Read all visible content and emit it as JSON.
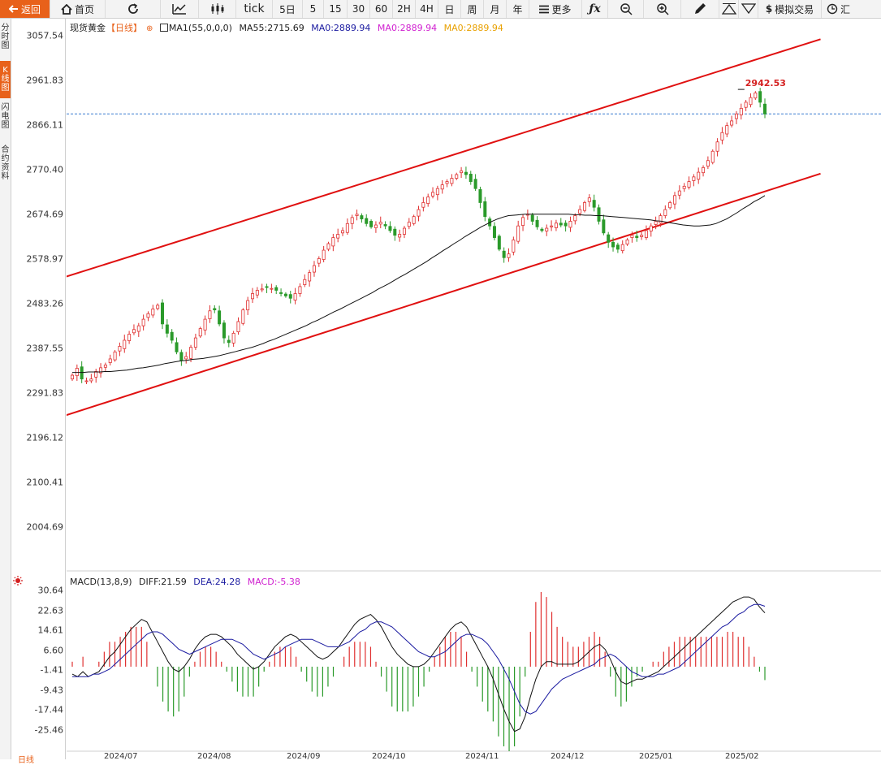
{
  "toolbar": {
    "back": "返回",
    "home": "首页",
    "tick": "tick",
    "periods": [
      "5日",
      "5",
      "15",
      "30",
      "60",
      "2H",
      "4H",
      "日",
      "周",
      "月",
      "年"
    ],
    "more": "更多",
    "sim_trade": "模拟交易",
    "last": "汇"
  },
  "sidebar": {
    "tabs": [
      "分时图",
      "K线图",
      "闪电图",
      "合约资料"
    ]
  },
  "legend": {
    "name": "现货黄金",
    "period": "【日线】",
    "ma1": "MA1(55,0,0,0)",
    "ma55": "MA55:2715.69",
    "ma0a": "MA0:2889.94",
    "ma0b": "MA0:2889.94",
    "ma0c": "MA0:2889.94"
  },
  "macd_legend": {
    "name": "MACD(13,8,9)",
    "diff": "DIFF:21.59",
    "dea": "DEA:24.28",
    "macd": "MACD:-5.38"
  },
  "peak_label": "2942.53",
  "footer_tab": "日线",
  "colors": {
    "up": "#e03030",
    "down": "#2a9a2a",
    "channel": "#e01010",
    "dea": "#1a1aa0",
    "accent": "#e8611a"
  },
  "chart_data": [
    {
      "type": "candlestick",
      "ylim": [
        1960,
        3080
      ],
      "y_ticks": [
        "3057.54",
        "2961.83",
        "2866.11",
        "2770.40",
        "2674.69",
        "2578.97",
        "2483.26",
        "2387.55",
        "2291.83",
        "2196.12",
        "2100.41",
        "2004.69"
      ],
      "x_labels": [
        "2024/07",
        "2024/08",
        "2024/09",
        "2024/10",
        "2024/11",
        "2024/12",
        "2025/01",
        "2025/02"
      ],
      "current_price_line": 2889.94,
      "peak": 2942.53,
      "ma55_end": 2715.69,
      "close": [
        2330,
        2345,
        2322,
        2318,
        2322,
        2338,
        2346,
        2352,
        2365,
        2380,
        2392,
        2405,
        2418,
        2428,
        2436,
        2450,
        2462,
        2472,
        2480,
        2440,
        2420,
        2405,
        2380,
        2362,
        2370,
        2390,
        2410,
        2430,
        2450,
        2468,
        2470,
        2440,
        2410,
        2400,
        2420,
        2445,
        2470,
        2490,
        2505,
        2512,
        2515,
        2518,
        2516,
        2512,
        2505,
        2500,
        2495,
        2505,
        2520,
        2535,
        2550,
        2565,
        2580,
        2598,
        2612,
        2625,
        2632,
        2640,
        2655,
        2668,
        2675,
        2665,
        2655,
        2648,
        2652,
        2658,
        2650,
        2640,
        2630,
        2632,
        2645,
        2658,
        2670,
        2685,
        2700,
        2712,
        2722,
        2730,
        2738,
        2745,
        2752,
        2760,
        2768,
        2760,
        2745,
        2730,
        2700,
        2670,
        2650,
        2625,
        2600,
        2582,
        2590,
        2620,
        2650,
        2668,
        2675,
        2660,
        2648,
        2640,
        2645,
        2650,
        2656,
        2652,
        2650,
        2660,
        2672,
        2685,
        2700,
        2710,
        2690,
        2660,
        2635,
        2615,
        2605,
        2600,
        2610,
        2620,
        2630,
        2625,
        2630,
        2640,
        2650,
        2660,
        2672,
        2685,
        2700,
        2715,
        2725,
        2735,
        2745,
        2755,
        2765,
        2775,
        2790,
        2810,
        2830,
        2850,
        2865,
        2875,
        2890,
        2902,
        2915,
        2925,
        2935,
        2915,
        2890
      ],
      "ma55": [
        2336,
        2336,
        2336,
        2337,
        2337,
        2337,
        2338,
        2338,
        2339,
        2340,
        2341,
        2343,
        2345,
        2346,
        2348,
        2350,
        2352,
        2355,
        2357,
        2359,
        2361,
        2362,
        2364,
        2365,
        2366,
        2368,
        2370,
        2372,
        2375,
        2378,
        2381,
        2384,
        2387,
        2390,
        2394,
        2398,
        2403,
        2407,
        2412,
        2417,
        2422,
        2427,
        2432,
        2437,
        2443,
        2448,
        2454,
        2460,
        2466,
        2471,
        2477,
        2483,
        2489,
        2495,
        2501,
        2507,
        2514,
        2520,
        2526,
        2533,
        2540,
        2546,
        2553,
        2560,
        2567,
        2574,
        2582,
        2589,
        2597,
        2604,
        2612,
        2619,
        2627,
        2634,
        2641,
        2648,
        2654,
        2660,
        2665,
        2669,
        2672,
        2673,
        2674,
        2675,
        2675,
        2675,
        2675,
        2675,
        2675,
        2675,
        2675,
        2675,
        2674,
        2674,
        2673,
        2673,
        2672,
        2672,
        2671,
        2670,
        2669,
        2668,
        2667,
        2666,
        2665,
        2664,
        2663,
        2661,
        2660,
        2658,
        2656,
        2654,
        2652,
        2651,
        2650,
        2650,
        2651,
        2652,
        2655,
        2660,
        2665,
        2672,
        2679,
        2687,
        2694,
        2702,
        2708,
        2715
      ],
      "channel_upper": [
        {
          "date": "2024-06-26",
          "value": 2535
        },
        {
          "date": "2025-02-28",
          "value": 3050
        }
      ],
      "channel_lower": [
        {
          "date": "2024-06-26",
          "value": 2238
        },
        {
          "date": "2025-02-28",
          "value": 2762
        }
      ]
    },
    {
      "type": "bar",
      "title": "MACD(13,8,9)",
      "ylim": [
        -33,
        33
      ],
      "y_ticks": [
        "30.64",
        "22.63",
        "14.61",
        "6.60",
        "-1.41",
        "-9.43",
        "-17.44",
        "-25.46"
      ],
      "diff": [
        -3,
        -4,
        -2,
        -4,
        -3,
        -2,
        1,
        4,
        6,
        9,
        12,
        15,
        17,
        19,
        18,
        14,
        10,
        6,
        2,
        -1,
        -2,
        0,
        3,
        7,
        10,
        12,
        13,
        13,
        12,
        10,
        8,
        5,
        3,
        1,
        -1,
        0,
        2,
        5,
        8,
        10,
        12,
        13,
        12,
        10,
        8,
        6,
        4,
        3,
        4,
        6,
        8,
        11,
        14,
        17,
        19,
        20,
        21,
        19,
        16,
        12,
        8,
        5,
        3,
        1,
        0,
        0,
        1,
        3,
        6,
        9,
        12,
        15,
        17,
        18,
        16,
        12,
        8,
        4,
        0,
        -5,
        -11,
        -17,
        -22,
        -26,
        -25,
        -20,
        -12,
        -5,
        0,
        2,
        2,
        1,
        1,
        1,
        1,
        2,
        4,
        6,
        8,
        9,
        7,
        3,
        -2,
        -6,
        -7,
        -6,
        -5,
        -5,
        -4,
        -3,
        -2,
        0,
        2,
        4,
        6,
        8,
        10,
        12,
        14,
        16,
        18,
        20,
        22,
        24,
        26,
        27,
        28,
        28,
        27,
        24,
        21.59
      ],
      "dea": [
        -4,
        -4,
        -4,
        -4,
        -3,
        -3,
        -2,
        -1,
        1,
        3,
        5,
        7,
        9,
        11,
        13,
        14,
        14,
        13,
        11,
        9,
        7,
        6,
        5,
        6,
        7,
        8,
        9,
        10,
        11,
        11,
        11,
        10,
        9,
        7,
        5,
        4,
        3,
        4,
        5,
        6,
        8,
        9,
        10,
        11,
        11,
        11,
        10,
        9,
        8,
        8,
        8,
        9,
        10,
        12,
        14,
        15,
        17,
        18,
        18,
        17,
        16,
        14,
        12,
        10,
        8,
        6,
        5,
        4,
        4,
        5,
        6,
        8,
        10,
        12,
        13,
        13,
        12,
        11,
        9,
        6,
        3,
        -1,
        -5,
        -10,
        -15,
        -18,
        -19,
        -18,
        -15,
        -12,
        -9,
        -7,
        -5,
        -4,
        -3,
        -2,
        -1,
        0,
        1,
        3,
        4,
        5,
        4,
        2,
        0,
        -2,
        -3,
        -4,
        -4,
        -4,
        -3,
        -3,
        -2,
        -1,
        0,
        2,
        4,
        6,
        8,
        10,
        12,
        14,
        16,
        17,
        19,
        21,
        22,
        24,
        25,
        25,
        24.28
      ],
      "histogram_last": -5.38
    }
  ]
}
